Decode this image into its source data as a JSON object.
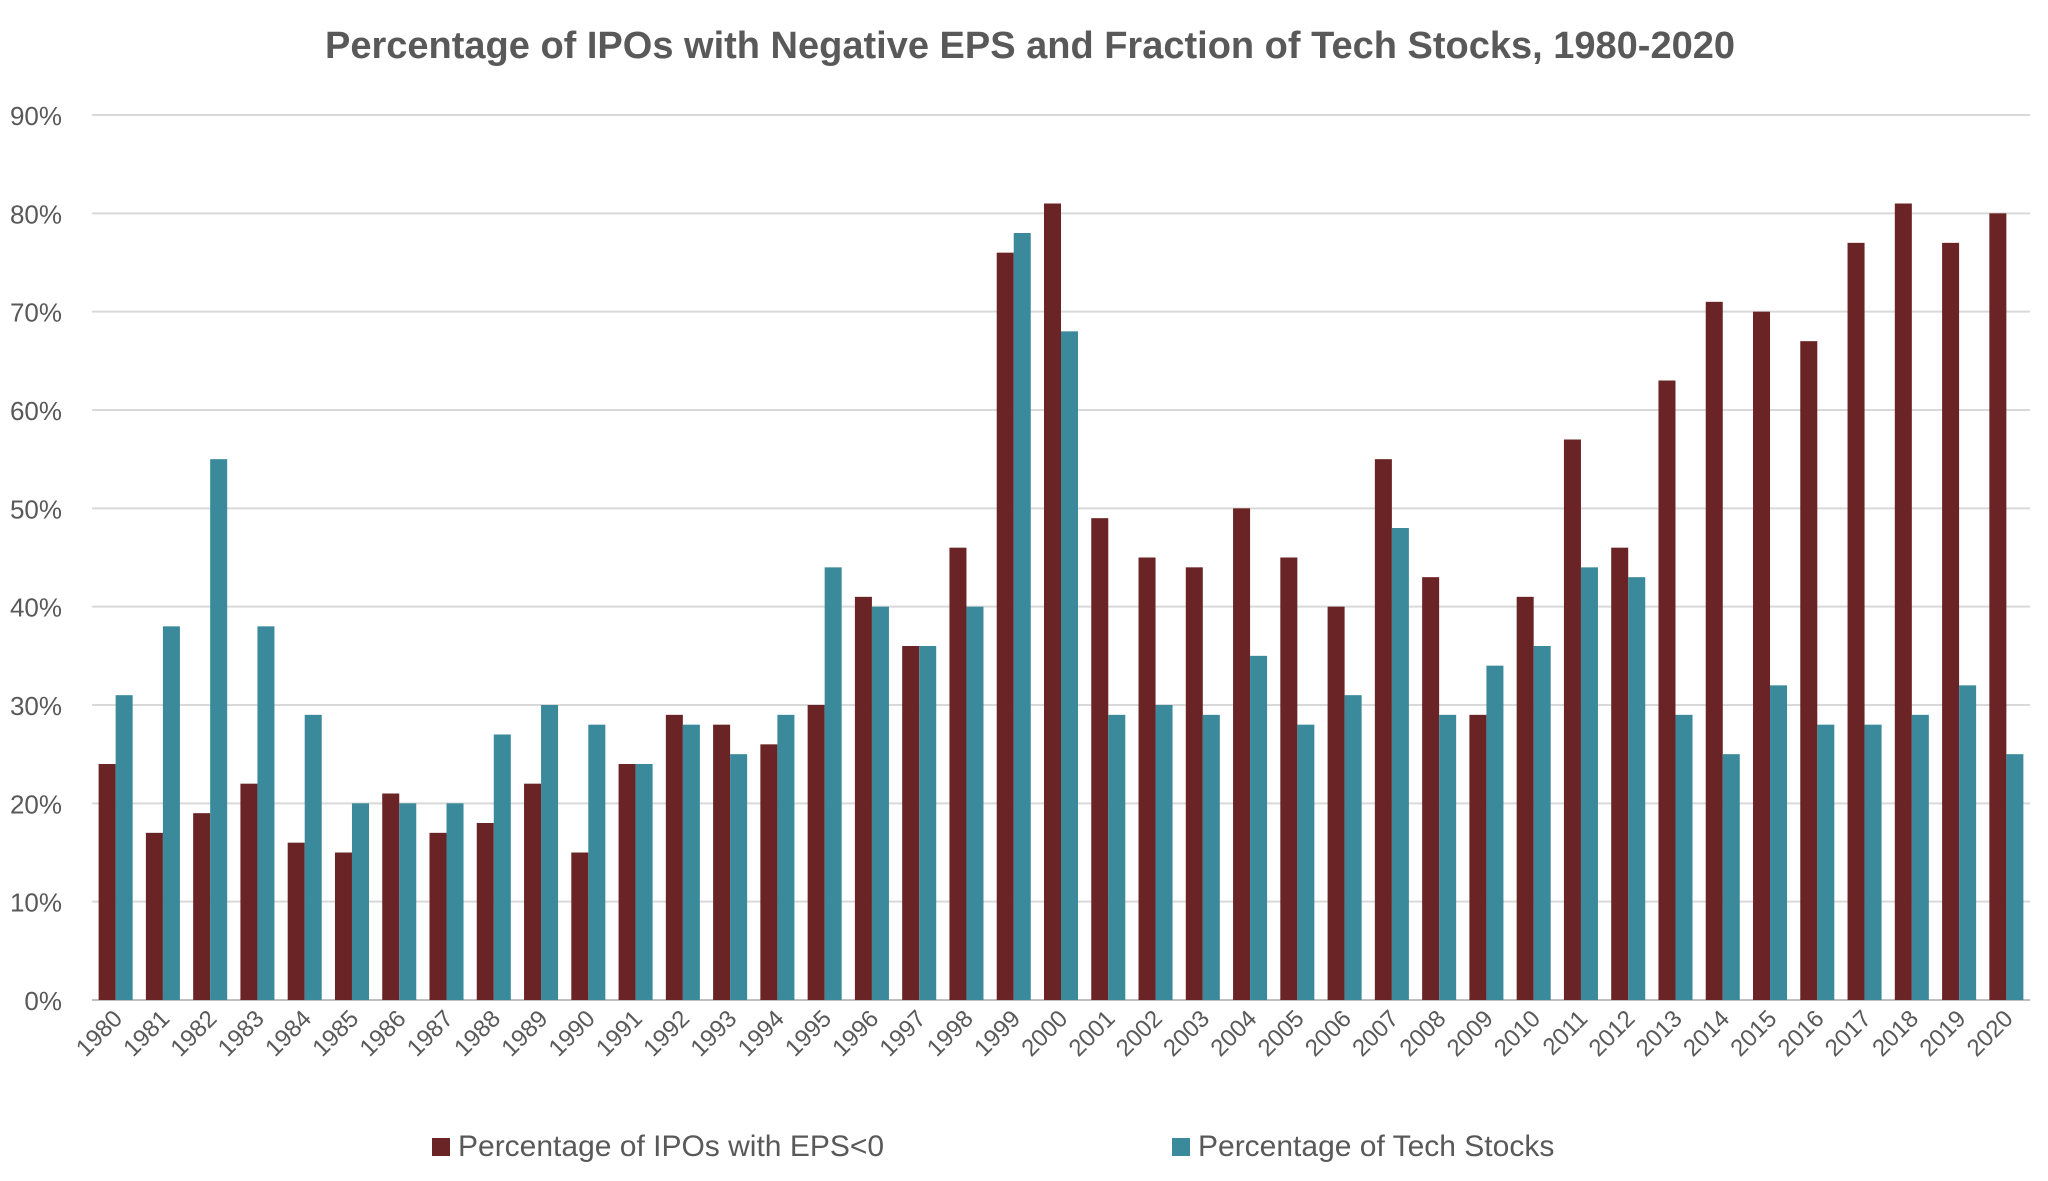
{
  "chart_data": {
    "type": "bar",
    "title": "Percentage of IPOs with Negative EPS and Fraction of Tech Stocks, 1980-2020",
    "xlabel": "",
    "ylabel": "",
    "ylim": [
      0,
      90
    ],
    "yticks": [
      "0%",
      "10%",
      "20%",
      "30%",
      "40%",
      "50%",
      "60%",
      "70%",
      "80%",
      "90%"
    ],
    "grid": true,
    "legend_position": "bottom",
    "categories": [
      "1980",
      "1981",
      "1982",
      "1983",
      "1984",
      "1985",
      "1986",
      "1987",
      "1988",
      "1989",
      "1990",
      "1991",
      "1992",
      "1993",
      "1994",
      "1995",
      "1996",
      "1997",
      "1998",
      "1999",
      "2000",
      "2001",
      "2002",
      "2003",
      "2004",
      "2005",
      "2006",
      "2007",
      "2008",
      "2009",
      "2010",
      "2011",
      "2012",
      "2013",
      "2014",
      "2015",
      "2016",
      "2017",
      "2018",
      "2019",
      "2020"
    ],
    "series": [
      {
        "name": "Percentage of IPOs with EPS<0",
        "color": "#6b2425",
        "values": [
          24,
          17,
          19,
          22,
          16,
          15,
          21,
          17,
          18,
          22,
          15,
          24,
          29,
          28,
          26,
          30,
          41,
          36,
          46,
          76,
          81,
          49,
          45,
          44,
          50,
          45,
          40,
          55,
          43,
          29,
          41,
          57,
          46,
          63,
          71,
          70,
          67,
          77,
          81,
          77,
          80
        ]
      },
      {
        "name": "Percentage of Tech Stocks",
        "color": "#3a8a9c",
        "values": [
          31,
          38,
          55,
          38,
          29,
          20,
          20,
          20,
          27,
          30,
          28,
          24,
          28,
          25,
          29,
          44,
          40,
          36,
          40,
          78,
          68,
          29,
          30,
          29,
          35,
          28,
          31,
          48,
          29,
          34,
          36,
          44,
          43,
          29,
          25,
          32,
          28,
          28,
          29,
          32,
          25
        ]
      }
    ]
  }
}
